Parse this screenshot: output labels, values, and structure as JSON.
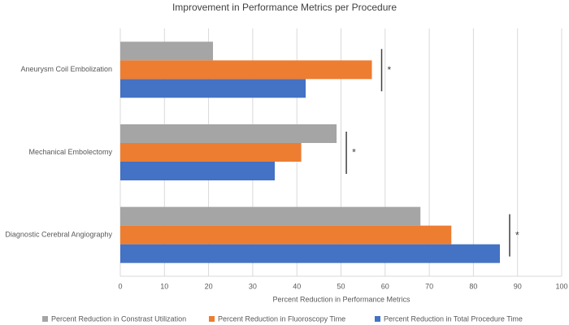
{
  "chart_data": {
    "type": "hbar",
    "title": "Improvement in Performance Metrics per Procedure",
    "x_label": "Percent Reduction in Performance Metrics",
    "categories": [
      "Aneurysm Coil Embolization",
      "Mechanical Embolectomy",
      "Diagnostic Cerebral Angiography"
    ],
    "series": [
      {
        "name": "Percent Reduction in Constrast Utilization",
        "color": "#a5a5a5",
        "values": [
          21,
          49,
          68
        ]
      },
      {
        "name": "Percent Reduction in Fluoroscopy Time",
        "color": "#ed7d31",
        "values": [
          57,
          41,
          75
        ]
      },
      {
        "name": "Percent Reduction in Total Procedure Time",
        "color": "#4472c4",
        "values": [
          42,
          35,
          86
        ]
      }
    ],
    "annotations": [
      "*",
      "*",
      "*"
    ],
    "xlim": [
      0,
      100
    ],
    "xticks": [
      0,
      10,
      20,
      30,
      40,
      50,
      60,
      70,
      80,
      90,
      100
    ],
    "grid": true,
    "legend": "bottom"
  }
}
